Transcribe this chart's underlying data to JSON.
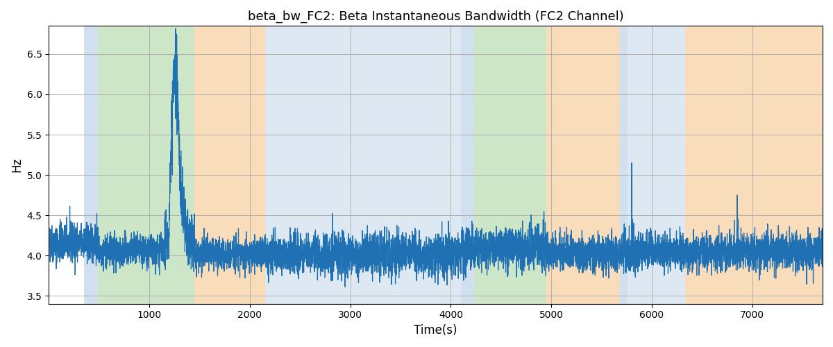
{
  "title": "beta_bw_FC2: Beta Instantaneous Bandwidth (FC2 Channel)",
  "xlabel": "Time(s)",
  "ylabel": "Hz",
  "ylim": [
    3.4,
    6.85
  ],
  "xlim": [
    0,
    7700
  ],
  "xticks": [
    1000,
    2000,
    3000,
    4000,
    5000,
    6000,
    7000
  ],
  "yticks": [
    3.5,
    4.0,
    4.5,
    5.0,
    5.5,
    6.0,
    6.5
  ],
  "line_color": "#2070b4",
  "line_width": 0.9,
  "figsize": [
    12.0,
    5.0
  ],
  "dpi": 100,
  "background_color": "#ffffff",
  "grid_color": "#b0b0b0",
  "bands": [
    {
      "xmin": 350,
      "xmax": 490,
      "color": "#aac7e2",
      "alpha": 0.55
    },
    {
      "xmin": 490,
      "xmax": 1450,
      "color": "#90c985",
      "alpha": 0.45
    },
    {
      "xmin": 1450,
      "xmax": 2150,
      "color": "#f5c080",
      "alpha": 0.55
    },
    {
      "xmin": 2150,
      "xmax": 4100,
      "color": "#aac7e2",
      "alpha": 0.4
    },
    {
      "xmin": 4100,
      "xmax": 4230,
      "color": "#aac7e2",
      "alpha": 0.55
    },
    {
      "xmin": 4230,
      "xmax": 4950,
      "color": "#90c985",
      "alpha": 0.45
    },
    {
      "xmin": 4950,
      "xmax": 5680,
      "color": "#f5c080",
      "alpha": 0.55
    },
    {
      "xmin": 5680,
      "xmax": 5760,
      "color": "#aac7e2",
      "alpha": 0.55
    },
    {
      "xmin": 5760,
      "xmax": 6330,
      "color": "#aac7e2",
      "alpha": 0.4
    },
    {
      "xmin": 6330,
      "xmax": 7700,
      "color": "#f5c080",
      "alpha": 0.55
    }
  ],
  "seed": 42
}
